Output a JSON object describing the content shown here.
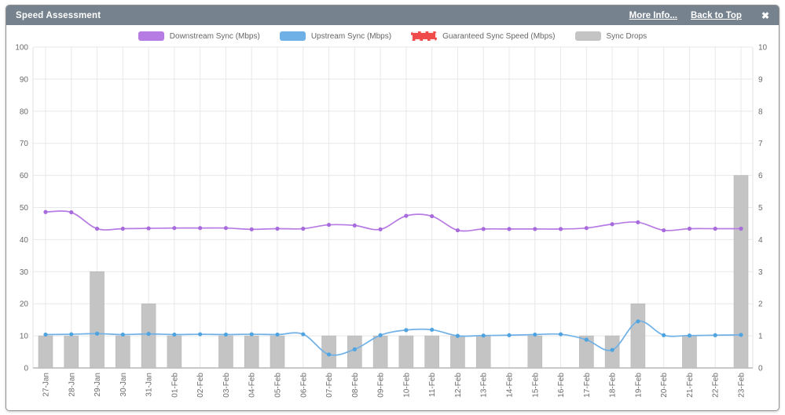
{
  "header": {
    "title": "Speed Assessment",
    "more_info_label": "More Info...",
    "back_to_top_label": "Back to Top",
    "close_glyph": "✖"
  },
  "colors": {
    "header_bg": "#76828E",
    "axis_text": "#6a6a6a",
    "grid": "#e8e8e8",
    "plot_edge": "#e0e0e0",
    "baseline": "#c9c9c9",
    "downstream": "#B77CE4",
    "downstream_marker": "#A76BDC",
    "upstream": "#6FB1E7",
    "upstream_marker": "#4FA4E0",
    "guaranteed": "#F04B4B",
    "drops_bar": "#C4C4C4",
    "drops_bar_edge": "#b7b7b7"
  },
  "chart_data": {
    "type": "mixed",
    "title": "Speed Assessment",
    "categories": [
      "27-Jan",
      "28-Jan",
      "29-Jan",
      "30-Jan",
      "31-Jan",
      "01-Feb",
      "02-Feb",
      "03-Feb",
      "04-Feb",
      "05-Feb",
      "06-Feb",
      "07-Feb",
      "08-Feb",
      "09-Feb",
      "10-Feb",
      "11-Feb",
      "12-Feb",
      "13-Feb",
      "14-Feb",
      "15-Feb",
      "16-Feb",
      "17-Feb",
      "18-Feb",
      "19-Feb",
      "20-Feb",
      "21-Feb",
      "22-Feb",
      "23-Feb"
    ],
    "series": [
      {
        "name": "Downstream Sync (Mbps)",
        "slug": "downstream",
        "type": "line",
        "axis": "left",
        "color": "#B77CE4",
        "marker_color": "#A76BDC",
        "values": [
          48.6,
          48.5,
          43.4,
          43.4,
          43.5,
          43.6,
          43.6,
          43.6,
          43.2,
          43.4,
          43.4,
          44.6,
          44.4,
          43.2,
          47.4,
          47.3,
          42.9,
          43.3,
          43.3,
          43.3,
          43.3,
          43.6,
          44.8,
          45.4,
          42.9,
          43.4,
          43.4,
          43.4
        ]
      },
      {
        "name": "Upstream Sync (Mbps)",
        "slug": "upstream",
        "type": "line",
        "axis": "left",
        "color": "#6FB1E7",
        "marker_color": "#4FA4E0",
        "values": [
          10.4,
          10.5,
          10.7,
          10.4,
          10.6,
          10.4,
          10.5,
          10.4,
          10.5,
          10.4,
          10.5,
          4.2,
          5.8,
          10.2,
          11.8,
          11.9,
          10.0,
          10.1,
          10.2,
          10.4,
          10.5,
          8.8,
          5.6,
          14.5,
          10.2,
          10.1,
          10.2,
          10.3
        ]
      },
      {
        "name": "Guaranteed Sync Speed (Mbps)",
        "slug": "guaranteed",
        "type": "line",
        "style": "dashed",
        "axis": "left",
        "color": "#F04B4B",
        "marker_color": "#F04B4B",
        "values": []
      },
      {
        "name": "Sync Drops",
        "slug": "sync-drops",
        "type": "bar",
        "axis": "right",
        "color": "#C4C4C4",
        "values": [
          1,
          1,
          3,
          1,
          2,
          1,
          0,
          1,
          1,
          1,
          0,
          1,
          1,
          1,
          1,
          1,
          1,
          1,
          0,
          1,
          0,
          1,
          1,
          2,
          0,
          1,
          0,
          6
        ]
      }
    ],
    "left_axis": {
      "min": 0,
      "max": 100,
      "step": 10,
      "ticks": [
        0,
        10,
        20,
        30,
        40,
        50,
        60,
        70,
        80,
        90,
        100
      ]
    },
    "right_axis": {
      "min": 0,
      "max": 10,
      "step": 1,
      "ticks": [
        0,
        1,
        2,
        3,
        4,
        5,
        6,
        7,
        8,
        9,
        10
      ]
    },
    "grid": true,
    "legend_position": "top"
  }
}
